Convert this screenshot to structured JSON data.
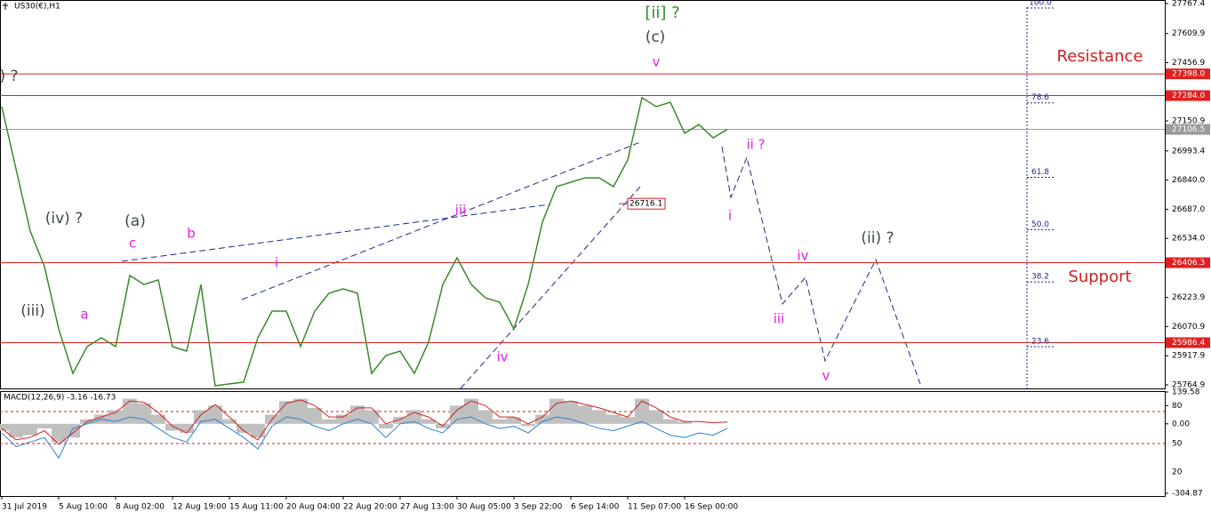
{
  "chart_data": [
    {
      "type": "line",
      "title": "US30(€),H1",
      "color": "#3a8a2a",
      "categories": [
        "31 Jul 2019",
        null,
        null,
        null,
        "5 Aug 10:00",
        null,
        null,
        null,
        "8 Aug 02:00",
        null,
        null,
        null,
        "12 Aug 19:00",
        null,
        null,
        null,
        "15 Aug 11:00",
        null,
        null,
        null,
        "20 Aug 04:00",
        null,
        null,
        null,
        "22 Aug 20:00",
        null,
        null,
        null,
        "27 Aug 13:00",
        null,
        null,
        null,
        "30 Aug 05:00",
        null,
        null,
        null,
        "3 Sep 22:00",
        null,
        null,
        null,
        "6 Sep 14:00",
        null,
        null,
        null,
        "11 Sep 07:00",
        null,
        null,
        null,
        "16 Sep 00:00",
        null,
        null,
        null
      ],
      "values": [
        27226,
        26899,
        26572,
        26386,
        26059,
        25825,
        25966,
        26012,
        25966,
        26339,
        26292,
        26316,
        25966,
        25942,
        26292,
        25760,
        25770,
        25779,
        26012,
        26152,
        26152,
        25966,
        26152,
        26246,
        26269,
        26246,
        25825,
        25919,
        25942,
        25825,
        25989,
        26292,
        26432,
        26292,
        26222,
        26199,
        26059,
        26292,
        26619,
        26806,
        26829,
        26852,
        26852,
        26806,
        26946,
        27273,
        27226,
        27249,
        27086,
        27132,
        27062,
        27106.5
      ],
      "ylim": [
        25746,
        27786
      ],
      "yticks": [
        27767.4,
        27609.9,
        27456.9,
        27150.9,
        26993.4,
        {
          "value": 26840,
          "label": "26840.0"
        },
        {
          "value": 26687,
          "label": "26687.0"
        },
        {
          "value": 26534,
          "label": "26534.0"
        },
        26223.9,
        26070.9,
        25917.9,
        25764.9
      ],
      "levels": [
        {
          "value": 27398,
          "label": "27398.0",
          "color": "#e02020"
        },
        {
          "value": 27284,
          "label": "27284.0",
          "color": "#e02020"
        },
        {
          "value": 27106.5,
          "color": "#9a9a9a"
        },
        {
          "value": 26406.3,
          "color": "#e02020"
        },
        {
          "value": 25986.4,
          "color": "#e02020"
        }
      ],
      "price_label": {
        "value": 26716.1
      },
      "fib": {
        "low": 25416,
        "high": 27744,
        "levels": [
          {
            "value": 100,
            "label": "100.0"
          },
          78.6,
          61.8,
          {
            "value": 50,
            "label": "50.0"
          },
          38.2,
          23.6
        ]
      },
      "annotations": [
        "[ii] ?",
        "(c)",
        "v",
        ") ?",
        "(iv) ?",
        "(a)",
        "c",
        "b",
        "i",
        "(iii)",
        "a",
        "iii",
        "iv",
        "ii ?",
        "i",
        "iv",
        "(ii) ?",
        "iii",
        "v",
        "Resistance",
        "Support"
      ]
    },
    {
      "type": "macd",
      "title": "MACD(12,26,9) -3.16 -16.73",
      "ylim": [
        -304.87,
        139.58
      ],
      "yticks": [
        139.58,
        80,
        {
          "value": 0,
          "label": "0.00"
        },
        -304.87
      ],
      "extra_labels": [
        "50",
        "20"
      ],
      "series": [
        {
          "style": "bar",
          "color": "#c0c0c0",
          "values": [
            -30,
            -60,
            -50,
            -20,
            -80,
            -60,
            20,
            40,
            60,
            110,
            90,
            40,
            -30,
            -40,
            60,
            80,
            20,
            -40,
            -60,
            40,
            100,
            110,
            70,
            20,
            40,
            80,
            60,
            -20,
            30,
            60,
            20,
            -20,
            80,
            110,
            60,
            20,
            30,
            -10,
            40,
            110,
            100,
            80,
            60,
            40,
            30,
            110,
            60,
            20,
            10,
            0,
            0,
            0
          ]
        },
        {
          "style": "line",
          "color": "#d02020",
          "values": [
            -20,
            -70,
            -60,
            -30,
            -90,
            -40,
            10,
            30,
            50,
            100,
            95,
            50,
            -10,
            -40,
            40,
            85,
            30,
            -30,
            -70,
            20,
            90,
            105,
            80,
            30,
            30,
            70,
            70,
            0,
            20,
            50,
            30,
            -10,
            60,
            100,
            80,
            30,
            30,
            0,
            30,
            90,
            100,
            85,
            70,
            50,
            30,
            100,
            70,
            30,
            10,
            10,
            5,
            8
          ]
        },
        {
          "style": "line",
          "color": "#2a7fd0",
          "values": [
            -40,
            -100,
            -80,
            -60,
            -150,
            -20,
            0,
            20,
            10,
            30,
            20,
            -20,
            -60,
            -80,
            10,
            20,
            -20,
            -60,
            -110,
            -10,
            30,
            20,
            -10,
            -30,
            0,
            20,
            0,
            -60,
            0,
            10,
            -20,
            -40,
            20,
            30,
            0,
            -20,
            -10,
            -40,
            10,
            30,
            20,
            0,
            -20,
            -30,
            -10,
            10,
            -20,
            -50,
            -60,
            -40,
            -50,
            -20
          ]
        }
      ]
    }
  ]
}
